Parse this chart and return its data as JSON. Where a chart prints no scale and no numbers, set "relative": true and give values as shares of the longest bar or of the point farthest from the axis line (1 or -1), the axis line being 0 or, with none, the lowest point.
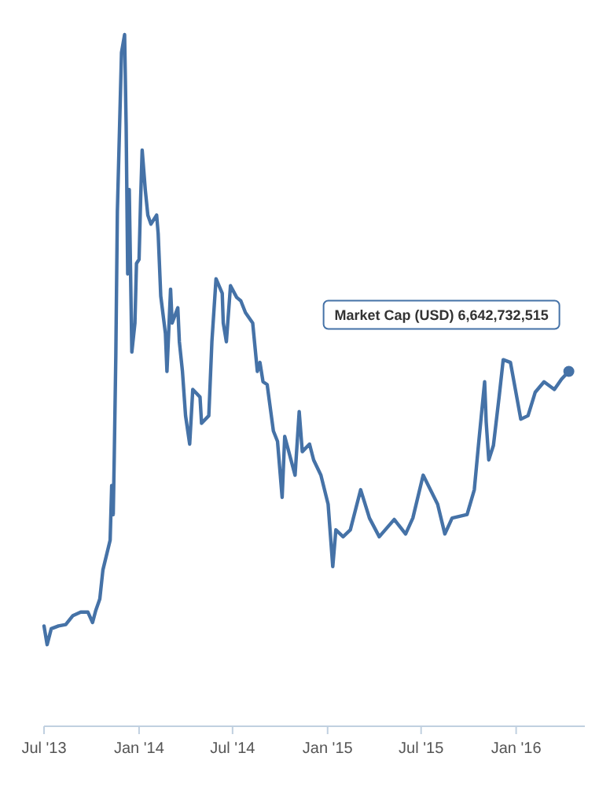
{
  "chart_data": {
    "type": "line",
    "relative": true,
    "marker": "none",
    "line_style": "solid",
    "xlim": [
      "2013-07-01",
      "2016-05-13"
    ],
    "xticks": [
      {
        "value": "2013-07-01",
        "label": "Jul '13"
      },
      {
        "value": "2014-01-01",
        "label": "Jan '14"
      },
      {
        "value": "2014-07-01",
        "label": "Jul '14"
      },
      {
        "value": "2015-01-01",
        "label": "Jan '15"
      },
      {
        "value": "2015-07-01",
        "label": "Jul '15"
      },
      {
        "value": "2016-01-01",
        "label": "Jan '16"
      }
    ],
    "tick_labels": "x",
    "x": [
      "2013-07-01",
      "2013-07-07",
      "2013-07-15",
      "2013-07-29",
      "2013-08-12",
      "2013-08-26",
      "2013-09-10",
      "2013-09-24",
      "2013-10-03",
      "2013-10-09",
      "2013-10-17",
      "2013-10-23",
      "2013-11-06",
      "2013-11-09",
      "2013-11-12",
      "2013-11-14",
      "2013-11-17",
      "2013-11-20",
      "2013-11-28",
      "2013-12-04",
      "2013-12-07",
      "2013-12-10",
      "2013-12-13",
      "2013-12-18",
      "2013-12-24",
      "2013-12-27",
      "2014-01-01",
      "2014-01-04",
      "2014-01-07",
      "2014-01-13",
      "2014-01-18",
      "2014-01-24",
      "2014-02-04",
      "2014-02-07",
      "2014-02-12",
      "2014-02-21",
      "2014-02-24",
      "2014-03-03",
      "2014-03-06",
      "2014-03-17",
      "2014-03-20",
      "2014-03-26",
      "2014-04-01",
      "2014-04-09",
      "2014-04-15",
      "2014-04-29",
      "2014-05-02",
      "2014-05-16",
      "2014-05-22",
      "2014-05-30",
      "2014-06-11",
      "2014-06-13",
      "2014-06-19",
      "2014-06-27",
      "2014-07-09",
      "2014-07-17",
      "2014-07-26",
      "2014-08-09",
      "2014-08-18",
      "2014-08-23",
      "2014-08-29",
      "2014-09-06",
      "2014-09-18",
      "2014-09-26",
      "2014-10-05",
      "2014-10-10",
      "2014-10-30",
      "2014-11-07",
      "2014-11-13",
      "2014-11-27",
      "2014-12-05",
      "2014-12-19",
      "2015-01-02",
      "2015-01-11",
      "2015-01-17",
      "2015-01-31",
      "2015-02-14",
      "2015-03-06",
      "2015-03-23",
      "2015-04-11",
      "2015-05-10",
      "2015-06-01",
      "2015-06-15",
      "2015-07-05",
      "2015-07-19",
      "2015-08-02",
      "2015-08-16",
      "2015-08-30",
      "2015-09-28",
      "2015-10-12",
      "2015-10-20",
      "2015-11-01",
      "2015-11-04",
      "2015-11-09",
      "2015-11-18",
      "2015-11-29",
      "2015-12-07",
      "2015-12-21",
      "2016-01-10",
      "2016-01-24",
      "2016-02-07",
      "2016-02-24",
      "2016-03-15",
      "2016-03-29",
      "2016-04-12"
    ],
    "series": [
      {
        "color": "#4572a7",
        "values": [
          0.145,
          0.118,
          0.141,
          0.145,
          0.147,
          0.16,
          0.165,
          0.165,
          0.15,
          0.167,
          0.184,
          0.226,
          0.269,
          0.348,
          0.306,
          0.391,
          0.536,
          0.744,
          0.974,
          1.0,
          0.868,
          0.654,
          0.776,
          0.541,
          0.583,
          0.669,
          0.675,
          0.761,
          0.833,
          0.776,
          0.739,
          0.726,
          0.739,
          0.712,
          0.622,
          0.568,
          0.513,
          0.632,
          0.583,
          0.605,
          0.556,
          0.513,
          0.449,
          0.408,
          0.487,
          0.476,
          0.438,
          0.449,
          0.556,
          0.647,
          0.626,
          0.583,
          0.556,
          0.637,
          0.62,
          0.615,
          0.598,
          0.583,
          0.513,
          0.526,
          0.498,
          0.494,
          0.427,
          0.412,
          0.331,
          0.419,
          0.363,
          0.455,
          0.397,
          0.408,
          0.385,
          0.363,
          0.321,
          0.231,
          0.284,
          0.274,
          0.284,
          0.342,
          0.301,
          0.274,
          0.299,
          0.278,
          0.301,
          0.363,
          0.342,
          0.321,
          0.278,
          0.301,
          0.306,
          0.342,
          0.406,
          0.498,
          0.44,
          0.385,
          0.406,
          0.476,
          0.53,
          0.526,
          0.444,
          0.449,
          0.483,
          0.498,
          0.487,
          0.502,
          0.513
        ]
      }
    ],
    "annotations": [
      "Market Cap (USD) 6,642,732,515"
    ]
  }
}
